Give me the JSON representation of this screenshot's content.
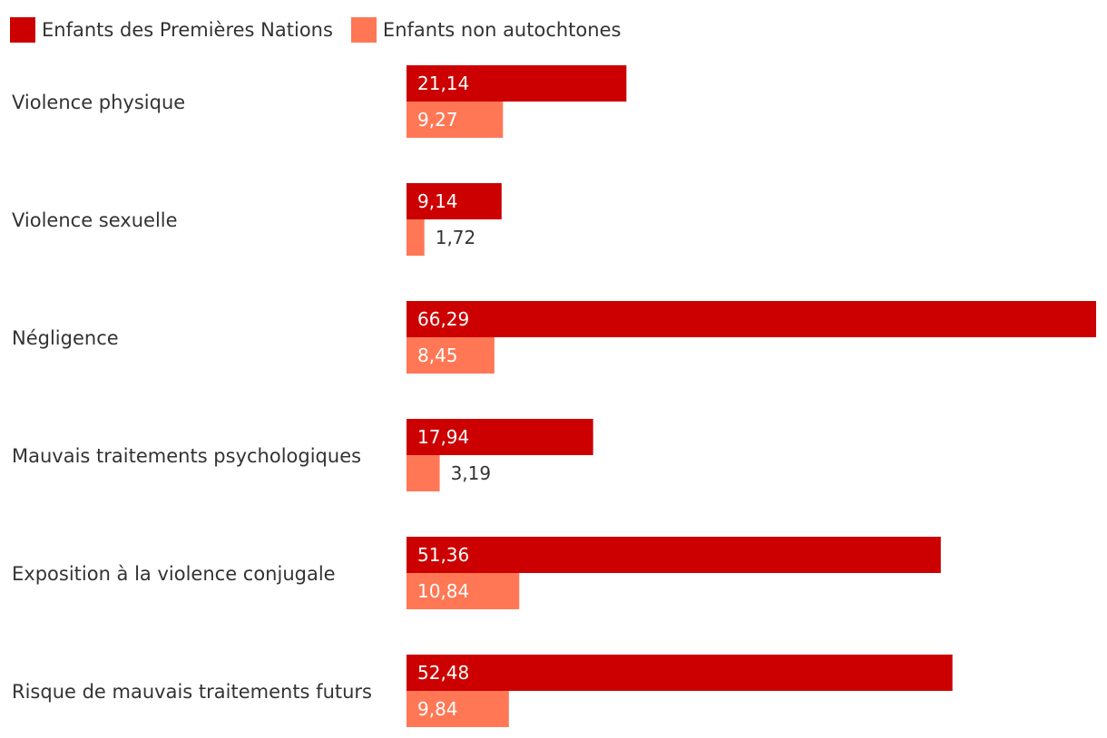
{
  "colors": {
    "first_nations": "#cc0000",
    "non_indigenous": "#ff7755",
    "text": "#333333"
  },
  "chart_data": {
    "type": "bar",
    "orientation": "horizontal",
    "categories": [
      "Violence physique",
      "Violence sexuelle",
      "Négligence",
      "Mauvais traitements psychologiques",
      "Exposition à la violence conjugale",
      "Risque de mauvais traitements futurs"
    ],
    "series": [
      {
        "name": "Enfants des Premières Nations",
        "values": [
          21.14,
          9.14,
          66.29,
          17.94,
          51.36,
          52.48
        ],
        "labels": [
          "21,14",
          "9,14",
          "66,29",
          "17,94",
          "51,36",
          "52,48"
        ]
      },
      {
        "name": "Enfants non autochtones",
        "values": [
          9.27,
          1.72,
          8.45,
          3.19,
          10.84,
          9.84
        ],
        "labels": [
          "9,27",
          "1,72",
          "8,45",
          "3,19",
          "10,84",
          "9,84"
        ]
      }
    ],
    "xlim": [
      0,
      66.29
    ],
    "grid": false,
    "legend_position": "top-left",
    "title": "",
    "xlabel": "",
    "ylabel": ""
  }
}
